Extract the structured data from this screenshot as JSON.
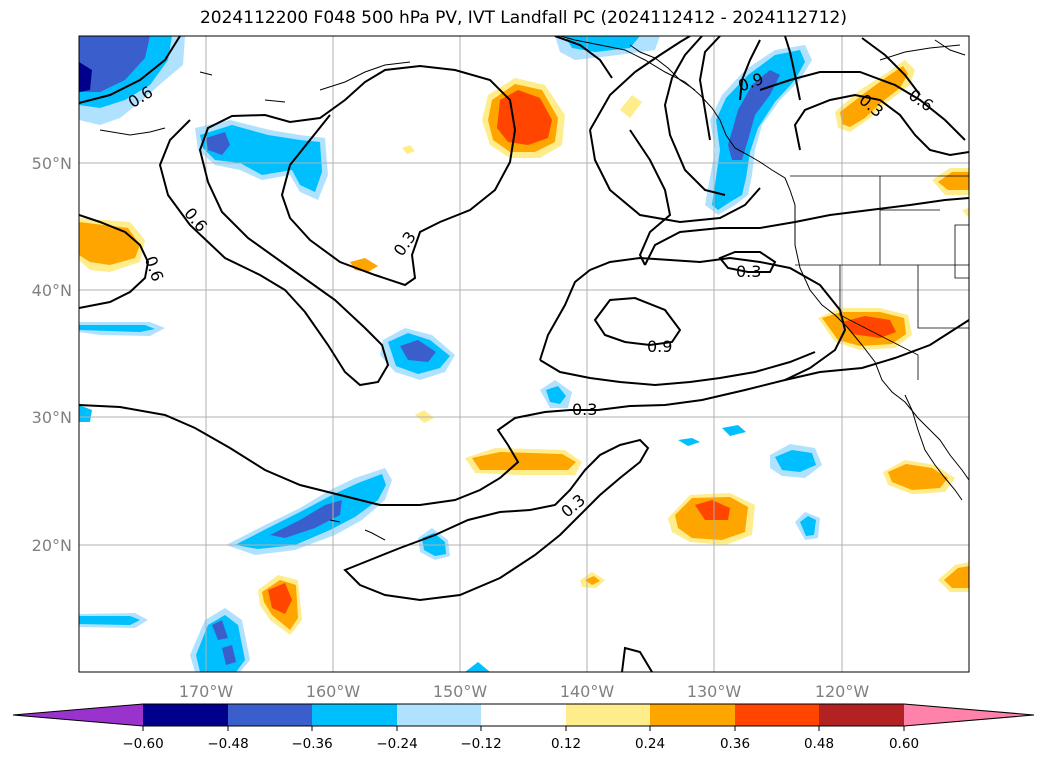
{
  "title": "2024112200 F048 500 hPa PV, IVT Landfall PC (2024112412 - 2024112712)",
  "map": {
    "lon_range": [
      -180,
      -110
    ],
    "lat_range": [
      10,
      60
    ],
    "lat_labels": [
      "50°N",
      "40°N",
      "30°N",
      "20°N"
    ],
    "lon_labels": [
      "170°W",
      "160°W",
      "150°W",
      "140°W",
      "130°W",
      "120°W"
    ],
    "contour_labels": [
      "0.6",
      "0.6",
      "0.6",
      "0.3",
      "0.9",
      "0.3",
      "0.6",
      "0.3",
      "0.9",
      "0.3",
      "0.3"
    ]
  },
  "colorbar": {
    "ticks": [
      "−0.60",
      "−0.48",
      "−0.36",
      "−0.24",
      "−0.12",
      "0.12",
      "0.24",
      "0.36",
      "0.48",
      "0.60"
    ],
    "colors": [
      "#9a32cd",
      "#00008b",
      "#3a5fcd",
      "#00bfff",
      "#b0e2ff",
      "#ffffff",
      "#ffec8b",
      "#ffa500",
      "#ff4500",
      "#b22222",
      "#ff82ab"
    ]
  }
}
